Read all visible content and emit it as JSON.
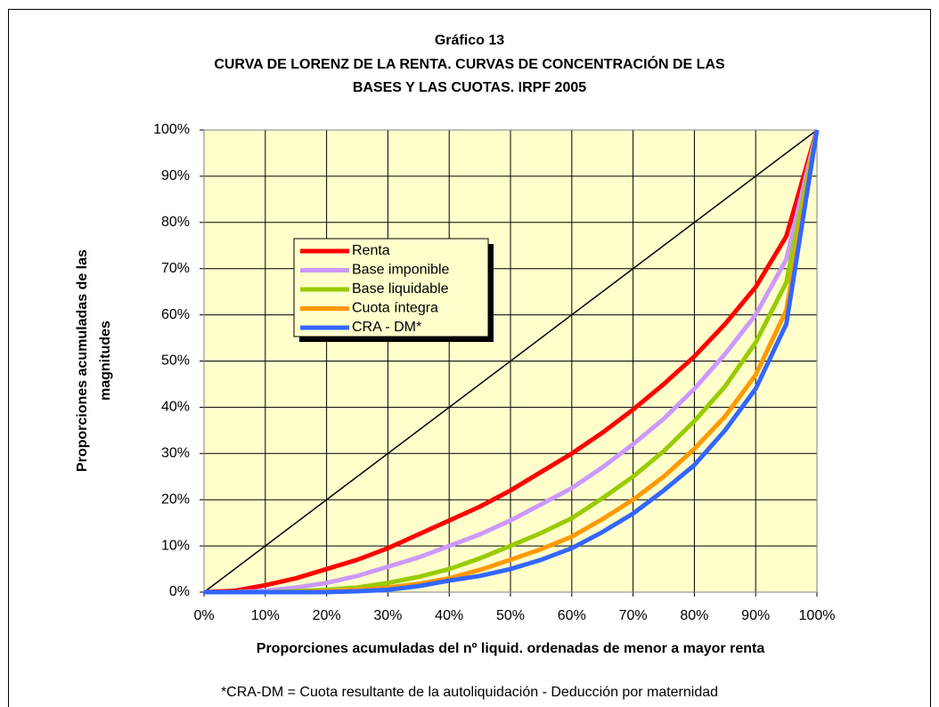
{
  "chart_data": {
    "type": "line",
    "title": "Gráfico 13",
    "subtitle": [
      "CURVA DE LORENZ DE LA RENTA. CURVAS DE CONCENTRACIÓN DE LAS",
      "BASES Y LAS CUOTAS. IRPF 2005"
    ],
    "x_label": "Proporciones acumuladas del nº liquid. ordenadas de menor a mayor renta",
    "y_label": [
      "Proporciones acumuladas de las",
      "magnitudes"
    ],
    "footnote": "*CRA-DM = Cuota resultante de la autoliquidación - Deducción por maternidad",
    "x": [
      0,
      5,
      10,
      15,
      20,
      25,
      30,
      35,
      40,
      45,
      50,
      55,
      60,
      65,
      70,
      75,
      80,
      85,
      90,
      95,
      100
    ],
    "series": [
      {
        "name": "Renta",
        "color": "#ff0000",
        "values": [
          0,
          0.3,
          1.5,
          3,
          5,
          7,
          9.5,
          12.5,
          15.5,
          18.5,
          22,
          26,
          30,
          34.5,
          39.5,
          45,
          51,
          58,
          66,
          77,
          100
        ]
      },
      {
        "name": "Base imponible",
        "color": "#cc99ff",
        "values": [
          0,
          0,
          0.3,
          1,
          2,
          3.5,
          5.5,
          7.5,
          10,
          12.5,
          15.5,
          19,
          22.5,
          27,
          32,
          37.5,
          44,
          51.5,
          60,
          72,
          100
        ]
      },
      {
        "name": "Base liquidable",
        "color": "#99cc00",
        "values": [
          0,
          0,
          0,
          0.2,
          0.5,
          1,
          2,
          3.3,
          5,
          7.3,
          10,
          12.8,
          16,
          20.3,
          25,
          30.5,
          37,
          44.5,
          54,
          67,
          100
        ]
      },
      {
        "name": "Cuota íntegra",
        "color": "#ff9900",
        "values": [
          0,
          0,
          0,
          0,
          0.2,
          0.5,
          1,
          1.8,
          3,
          4.8,
          7,
          9.3,
          12,
          15.8,
          20,
          25,
          31,
          38,
          47,
          61,
          100
        ]
      },
      {
        "name": "CRA - DM*",
        "color": "#3366ff",
        "values": [
          0,
          0,
          0,
          0,
          0,
          0.2,
          0.5,
          1.3,
          2.5,
          3.5,
          5,
          7,
          9.5,
          13,
          17,
          22,
          27.5,
          35,
          44,
          58,
          100
        ]
      }
    ],
    "xlim": [
      0,
      100
    ],
    "ylim": [
      0,
      100
    ],
    "xticks": [
      {
        "value": 0,
        "label": "0%"
      },
      {
        "value": 10,
        "label": "10%"
      },
      {
        "value": 20,
        "label": "20%"
      },
      {
        "value": 30,
        "label": "30%"
      },
      {
        "value": 40,
        "label": "40%"
      },
      {
        "value": 50,
        "label": "50%"
      },
      {
        "value": 60,
        "label": "60%"
      },
      {
        "value": 70,
        "label": "70%"
      },
      {
        "value": 80,
        "label": "80%"
      },
      {
        "value": 90,
        "label": "90%"
      },
      {
        "value": 100,
        "label": "100%"
      }
    ],
    "yticks": [
      {
        "value": 0,
        "label": "0%"
      },
      {
        "value": 10,
        "label": "10%"
      },
      {
        "value": 20,
        "label": "20%"
      },
      {
        "value": 30,
        "label": "30%"
      },
      {
        "value": 40,
        "label": "40%"
      },
      {
        "value": 50,
        "label": "50%"
      },
      {
        "value": 60,
        "label": "60%"
      },
      {
        "value": 70,
        "label": "70%"
      },
      {
        "value": 80,
        "label": "80%"
      },
      {
        "value": 90,
        "label": "90%"
      },
      {
        "value": 100,
        "label": "100%"
      }
    ],
    "grid": true,
    "plot_background": "#ffffcc"
  }
}
